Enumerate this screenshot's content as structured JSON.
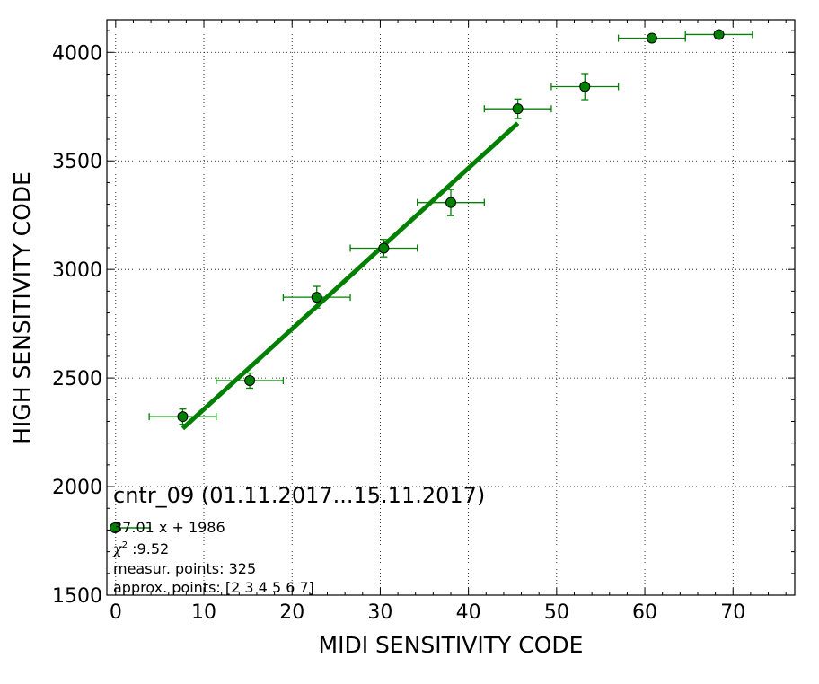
{
  "chart_data": {
    "type": "scatter",
    "xlabel": "MIDI SENSITIVITY CODE",
    "ylabel": "HIGH SENSITIVITY CODE",
    "xlim": [
      -1,
      77
    ],
    "ylim": [
      1500,
      4150
    ],
    "xticks": [
      0,
      10,
      20,
      30,
      40,
      50,
      60,
      70
    ],
    "yticks": [
      1500,
      2000,
      2500,
      3000,
      3500,
      4000
    ],
    "grid": true,
    "colors": {
      "marker": "#008000",
      "errorbar": "#008000",
      "fit": "#008000"
    },
    "points": [
      {
        "x": 7.6,
        "y": 2322,
        "xerr": 3.8,
        "yerr": 35
      },
      {
        "x": 15.2,
        "y": 2488,
        "xerr": 3.8,
        "yerr": 35
      },
      {
        "x": 22.8,
        "y": 2872,
        "xerr": 3.8,
        "yerr": 50
      },
      {
        "x": 30.4,
        "y": 3098,
        "xerr": 3.8,
        "yerr": 40
      },
      {
        "x": 38.0,
        "y": 3308,
        "xerr": 3.8,
        "yerr": 60
      },
      {
        "x": 45.6,
        "y": 3740,
        "xerr": 3.8,
        "yerr": 45
      },
      {
        "x": 53.2,
        "y": 3842,
        "xerr": 3.8,
        "yerr": 60
      },
      {
        "x": 60.8,
        "y": 4065,
        "xerr": 3.8,
        "yerr": 0
      },
      {
        "x": 68.4,
        "y": 4082,
        "xerr": 3.8,
        "yerr": 0
      }
    ],
    "fit": {
      "slope": 37.01,
      "intercept": 1986,
      "x_range": [
        7.6,
        45.6
      ]
    },
    "annotations": {
      "title": "cntr_09 (01.11.2017...15.11.2017)",
      "fit_label": "37.01 x + 1986",
      "chi2_symbol": "χ",
      "chi2_value": " :9.52",
      "measur_points": "measur. points: 325",
      "approx_points": "approx. points: [2 3 4 5 6 7]"
    }
  }
}
